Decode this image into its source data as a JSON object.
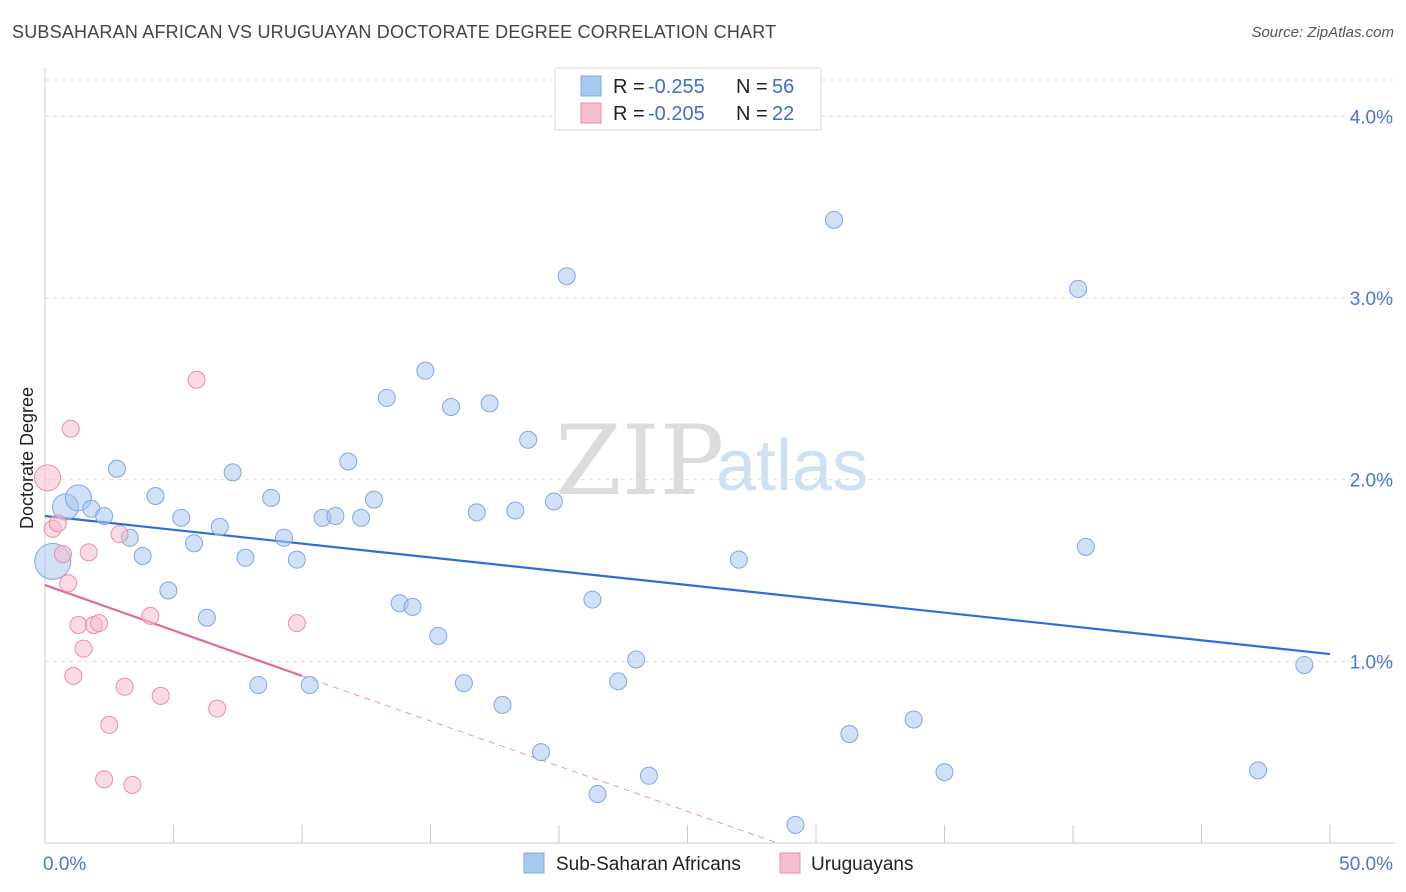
{
  "header": {
    "title": "SUBSAHARAN AFRICAN VS URUGUAYAN DOCTORATE DEGREE CORRELATION CHART",
    "source": "Source: ZipAtlas.com"
  },
  "watermark": {
    "zip": "ZIP",
    "atlas": "atlas"
  },
  "legend": {
    "rows": [
      {
        "r_label": "R =",
        "r_value": "-0.255",
        "n_label": "N =",
        "n_value": "56",
        "color": "#a9c8f0",
        "stroke": "#7fa8e0"
      },
      {
        "r_label": "R =",
        "r_value": "-0.205",
        "n_label": "N =",
        "n_value": "22",
        "color": "#f6bccd",
        "stroke": "#ea8fab"
      }
    ]
  },
  "bottom_legend": {
    "items": [
      {
        "label": "Sub-Saharan Africans",
        "color": "#a9c8f0",
        "stroke": "#7fa8e0"
      },
      {
        "label": "Uruguayans",
        "color": "#f6bccd",
        "stroke": "#ea8fab"
      }
    ]
  },
  "chart_data": {
    "type": "scatter",
    "title": "SUBSAHARAN AFRICAN VS URUGUAYAN DOCTORATE DEGREE CORRELATION CHART",
    "xlabel": "",
    "ylabel": "Doctorate Degree",
    "xlim": [
      0,
      50
    ],
    "ylim": [
      0,
      4.2
    ],
    "x_tick_labels": [
      "0.0%",
      "50.0%"
    ],
    "y_ticks": [
      1.0,
      2.0,
      3.0,
      4.0
    ],
    "y_tick_labels": [
      "1.0%",
      "2.0%",
      "3.0%",
      "4.0%"
    ],
    "grid": true,
    "series": [
      {
        "name": "Sub-Saharan Africans",
        "color": "#a9c8f0",
        "stroke": "#7fa8e0",
        "line_color": "#2b6fd4",
        "trend": {
          "x": [
            0,
            50
          ],
          "y": [
            1.8,
            1.04
          ]
        },
        "points": [
          {
            "x": 0.3,
            "y": 1.55,
            "s": 3
          },
          {
            "x": 0.8,
            "y": 1.85,
            "s": 2
          },
          {
            "x": 1.3,
            "y": 1.9,
            "s": 2
          },
          {
            "x": 1.8,
            "y": 1.84,
            "s": 1
          },
          {
            "x": 2.3,
            "y": 1.8,
            "s": 1
          },
          {
            "x": 2.8,
            "y": 2.06,
            "s": 1
          },
          {
            "x": 3.3,
            "y": 1.68,
            "s": 1
          },
          {
            "x": 3.8,
            "y": 1.58,
            "s": 1
          },
          {
            "x": 4.3,
            "y": 1.91,
            "s": 1
          },
          {
            "x": 4.8,
            "y": 1.39,
            "s": 1
          },
          {
            "x": 5.3,
            "y": 1.79,
            "s": 1
          },
          {
            "x": 5.8,
            "y": 1.65,
            "s": 1
          },
          {
            "x": 6.3,
            "y": 1.24,
            "s": 1
          },
          {
            "x": 6.8,
            "y": 1.74,
            "s": 1
          },
          {
            "x": 7.3,
            "y": 2.04,
            "s": 1
          },
          {
            "x": 7.8,
            "y": 1.57,
            "s": 1
          },
          {
            "x": 8.3,
            "y": 0.87,
            "s": 1
          },
          {
            "x": 8.8,
            "y": 1.9,
            "s": 1
          },
          {
            "x": 9.3,
            "y": 1.68,
            "s": 1
          },
          {
            "x": 9.8,
            "y": 1.56,
            "s": 1
          },
          {
            "x": 10.3,
            "y": 0.87,
            "s": 1
          },
          {
            "x": 10.8,
            "y": 1.79,
            "s": 1
          },
          {
            "x": 11.3,
            "y": 1.8,
            "s": 1
          },
          {
            "x": 11.8,
            "y": 2.1,
            "s": 1
          },
          {
            "x": 12.3,
            "y": 1.79,
            "s": 1
          },
          {
            "x": 12.8,
            "y": 1.89,
            "s": 1
          },
          {
            "x": 13.3,
            "y": 2.45,
            "s": 1
          },
          {
            "x": 13.8,
            "y": 1.32,
            "s": 1
          },
          {
            "x": 14.3,
            "y": 1.3,
            "s": 1
          },
          {
            "x": 14.8,
            "y": 2.6,
            "s": 1
          },
          {
            "x": 15.3,
            "y": 1.14,
            "s": 1
          },
          {
            "x": 15.8,
            "y": 2.4,
            "s": 1
          },
          {
            "x": 16.3,
            "y": 0.88,
            "s": 1
          },
          {
            "x": 16.8,
            "y": 1.82,
            "s": 1
          },
          {
            "x": 17.3,
            "y": 2.42,
            "s": 1
          },
          {
            "x": 17.8,
            "y": 0.76,
            "s": 1
          },
          {
            "x": 18.3,
            "y": 1.83,
            "s": 1
          },
          {
            "x": 18.8,
            "y": 2.22,
            "s": 1
          },
          {
            "x": 19.3,
            "y": 0.5,
            "s": 1
          },
          {
            "x": 19.8,
            "y": 1.88,
            "s": 1
          },
          {
            "x": 20.3,
            "y": 3.12,
            "s": 1
          },
          {
            "x": 21.3,
            "y": 1.34,
            "s": 1
          },
          {
            "x": 21.5,
            "y": 0.27,
            "s": 1
          },
          {
            "x": 22.3,
            "y": 0.89,
            "s": 1
          },
          {
            "x": 23.0,
            "y": 1.01,
            "s": 1
          },
          {
            "x": 23.5,
            "y": 0.37,
            "s": 1
          },
          {
            "x": 27.0,
            "y": 1.56,
            "s": 1
          },
          {
            "x": 29.2,
            "y": 0.1,
            "s": 1
          },
          {
            "x": 30.7,
            "y": 3.43,
            "s": 1
          },
          {
            "x": 31.3,
            "y": 0.6,
            "s": 1
          },
          {
            "x": 33.8,
            "y": 0.68,
            "s": 1
          },
          {
            "x": 35.0,
            "y": 0.39,
            "s": 1
          },
          {
            "x": 40.2,
            "y": 3.05,
            "s": 1
          },
          {
            "x": 40.5,
            "y": 1.63,
            "s": 1
          },
          {
            "x": 47.2,
            "y": 0.4,
            "s": 1
          },
          {
            "x": 49.0,
            "y": 0.98,
            "s": 1
          }
        ]
      },
      {
        "name": "Uruguayans",
        "color": "#f6bccd",
        "stroke": "#ea8fab",
        "line_color": "#e06a93",
        "trend": {
          "x": [
            0,
            10.0
          ],
          "y": [
            1.42,
            0.92
          ]
        },
        "trend_extension": {
          "x": [
            10.0,
            28.5
          ],
          "y": [
            0.92,
            0.0
          ]
        },
        "points": [
          {
            "x": 0.1,
            "y": 2.01,
            "s": 2
          },
          {
            "x": 0.3,
            "y": 1.73,
            "s": 1
          },
          {
            "x": 0.5,
            "y": 1.76,
            "s": 1
          },
          {
            "x": 0.7,
            "y": 1.59,
            "s": 1
          },
          {
            "x": 0.9,
            "y": 1.43,
            "s": 1
          },
          {
            "x": 1.0,
            "y": 2.28,
            "s": 1
          },
          {
            "x": 1.1,
            "y": 0.92,
            "s": 1
          },
          {
            "x": 1.3,
            "y": 1.2,
            "s": 1
          },
          {
            "x": 1.5,
            "y": 1.07,
            "s": 1
          },
          {
            "x": 1.7,
            "y": 1.6,
            "s": 1
          },
          {
            "x": 1.9,
            "y": 1.2,
            "s": 1
          },
          {
            "x": 2.1,
            "y": 1.21,
            "s": 1
          },
          {
            "x": 2.3,
            "y": 0.35,
            "s": 1
          },
          {
            "x": 2.5,
            "y": 0.65,
            "s": 1
          },
          {
            "x": 2.9,
            "y": 1.7,
            "s": 1
          },
          {
            "x": 3.1,
            "y": 0.86,
            "s": 1
          },
          {
            "x": 3.4,
            "y": 0.32,
            "s": 1
          },
          {
            "x": 4.1,
            "y": 1.25,
            "s": 1
          },
          {
            "x": 4.5,
            "y": 0.81,
            "s": 1
          },
          {
            "x": 5.9,
            "y": 2.55,
            "s": 1
          },
          {
            "x": 6.7,
            "y": 0.74,
            "s": 1
          },
          {
            "x": 9.8,
            "y": 1.21,
            "s": 1
          }
        ]
      }
    ]
  }
}
